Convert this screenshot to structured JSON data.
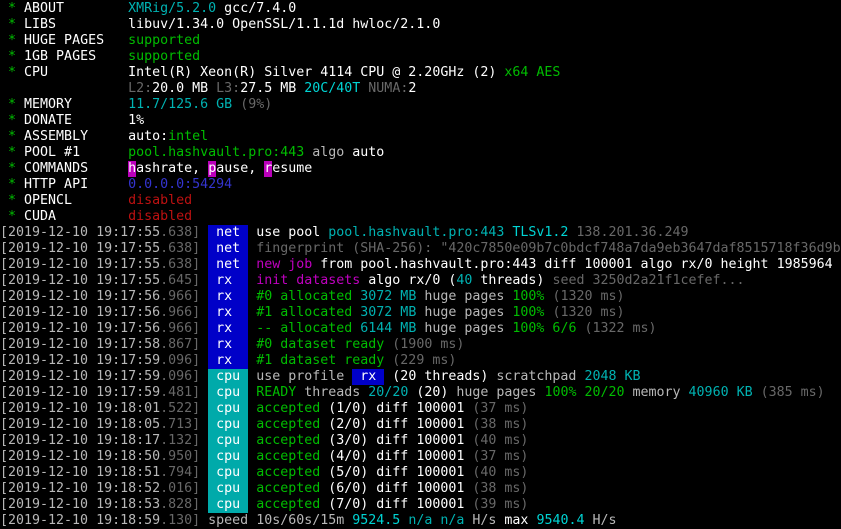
{
  "terminal": {
    "colors": {
      "green": "#00bc00",
      "white": "#b8b8b8",
      "bwhite": "#ffffff",
      "darkgray": "#686868",
      "cyan": "#00b2b2",
      "bcyan": "#00d4d4",
      "magenta": "#c000c0",
      "red": "#bd1111",
      "blue": "#3434d0"
    },
    "bg_colors": {
      "blue": "#0000c8",
      "cyan": "#00aaaa",
      "magenta": "#bb00bb"
    },
    "lines": [
      [
        {
          "t": " * ",
          "c": "green"
        },
        {
          "t": "ABOUT        ",
          "c": "bwhite"
        },
        {
          "t": "XMRig/5.2.0",
          "c": "cyan"
        },
        {
          "t": " gcc/7.4.0",
          "c": "bwhite"
        }
      ],
      [
        {
          "t": " * ",
          "c": "green"
        },
        {
          "t": "LIBS         ",
          "c": "bwhite"
        },
        {
          "t": "libuv/1.34.0 OpenSSL/1.1.1d hwloc/2.1.0",
          "c": "bwhite"
        }
      ],
      [
        {
          "t": " * ",
          "c": "green"
        },
        {
          "t": "HUGE PAGES   ",
          "c": "bwhite"
        },
        {
          "t": "supported",
          "c": "green"
        }
      ],
      [
        {
          "t": " * ",
          "c": "green"
        },
        {
          "t": "1GB PAGES    ",
          "c": "bwhite"
        },
        {
          "t": "supported",
          "c": "green"
        }
      ],
      [
        {
          "t": " * ",
          "c": "green"
        },
        {
          "t": "CPU          ",
          "c": "bwhite"
        },
        {
          "t": "Intel(R) Xeon(R) Silver 4114 CPU @ 2.20GHz (2) ",
          "c": "bwhite"
        },
        {
          "t": "x64 AES",
          "c": "green"
        }
      ],
      [
        {
          "t": "                ",
          "c": "white"
        },
        {
          "t": "L2:",
          "c": "darkgray"
        },
        {
          "t": "20.0 MB ",
          "c": "bwhite"
        },
        {
          "t": "L3:",
          "c": "darkgray"
        },
        {
          "t": "27.5 MB ",
          "c": "bwhite"
        },
        {
          "t": "20C/40T ",
          "c": "bcyan"
        },
        {
          "t": "NUMA:",
          "c": "darkgray"
        },
        {
          "t": "2",
          "c": "bwhite"
        }
      ],
      [
        {
          "t": " * ",
          "c": "green"
        },
        {
          "t": "MEMORY       ",
          "c": "bwhite"
        },
        {
          "t": "11.7/125.6 GB ",
          "c": "cyan"
        },
        {
          "t": "(9%)",
          "c": "darkgray"
        }
      ],
      [
        {
          "t": " * ",
          "c": "green"
        },
        {
          "t": "DONATE       ",
          "c": "bwhite"
        },
        {
          "t": "1%",
          "c": "bwhite"
        }
      ],
      [
        {
          "t": " * ",
          "c": "green"
        },
        {
          "t": "ASSEMBLY     ",
          "c": "bwhite"
        },
        {
          "t": "auto:",
          "c": "bwhite"
        },
        {
          "t": "intel",
          "c": "green"
        }
      ],
      [
        {
          "t": " * ",
          "c": "green"
        },
        {
          "t": "POOL #1      ",
          "c": "bwhite"
        },
        {
          "t": "pool.hashvault.pro:443",
          "c": "green"
        },
        {
          "t": " algo ",
          "c": "white"
        },
        {
          "t": "auto",
          "c": "bwhite"
        }
      ],
      [
        {
          "t": " * ",
          "c": "green"
        },
        {
          "t": "COMMANDS     ",
          "c": "bwhite"
        },
        {
          "t": "h",
          "c": "bwhite",
          "b": "magenta"
        },
        {
          "t": "ashrate, ",
          "c": "bwhite"
        },
        {
          "t": "p",
          "c": "bwhite",
          "b": "magenta"
        },
        {
          "t": "ause, ",
          "c": "bwhite"
        },
        {
          "t": "r",
          "c": "bwhite",
          "b": "magenta"
        },
        {
          "t": "esume",
          "c": "bwhite"
        }
      ],
      [
        {
          "t": " * ",
          "c": "green"
        },
        {
          "t": "HTTP API     ",
          "c": "bwhite"
        },
        {
          "t": "0.0.0.0:54294",
          "c": "blue"
        }
      ],
      [
        {
          "t": " * ",
          "c": "green"
        },
        {
          "t": "OPENCL       ",
          "c": "bwhite"
        },
        {
          "t": "disabled",
          "c": "red"
        }
      ],
      [
        {
          "t": " * ",
          "c": "green"
        },
        {
          "t": "CUDA         ",
          "c": "bwhite"
        },
        {
          "t": "disabled",
          "c": "red"
        }
      ],
      [
        {
          "t": "[2019-12-10 19:17:55",
          "c": "white"
        },
        {
          "t": ".638] ",
          "c": "darkgray"
        },
        {
          "t": " net ",
          "c": "bwhite",
          "b": "blue"
        },
        {
          "t": " use pool ",
          "c": "bwhite"
        },
        {
          "t": "pool.hashvault.pro:443 ",
          "c": "cyan"
        },
        {
          "t": "TLSv1.2 ",
          "c": "bcyan"
        },
        {
          "t": "138.201.36.249",
          "c": "darkgray"
        }
      ],
      [
        {
          "t": "[2019-12-10 19:17:55",
          "c": "white"
        },
        {
          "t": ".638] ",
          "c": "darkgray"
        },
        {
          "t": " net ",
          "c": "bwhite",
          "b": "blue"
        },
        {
          "t": " fingerprint (SHA-256): \"420c7850e09b7c0bdcf748a7da9eb3647daf8515718f36d9b",
          "c": "darkgray"
        }
      ],
      [
        {
          "t": "[2019-12-10 19:17:55",
          "c": "white"
        },
        {
          "t": ".638] ",
          "c": "darkgray"
        },
        {
          "t": " net ",
          "c": "bwhite",
          "b": "blue"
        },
        {
          "t": " ",
          "c": "bwhite"
        },
        {
          "t": "new job",
          "c": "magenta"
        },
        {
          "t": " from pool.hashvault.pro:443 diff 100001 algo rx/0 height 1985964",
          "c": "bwhite"
        }
      ],
      [
        {
          "t": "[2019-12-10 19:17:55",
          "c": "white"
        },
        {
          "t": ".645] ",
          "c": "darkgray"
        },
        {
          "t": " rx  ",
          "c": "bwhite",
          "b": "blue"
        },
        {
          "t": " ",
          "c": "bwhite"
        },
        {
          "t": "init datasets",
          "c": "magenta"
        },
        {
          "t": " algo rx/0 (",
          "c": "bwhite"
        },
        {
          "t": "40",
          "c": "cyan"
        },
        {
          "t": " threads) ",
          "c": "bwhite"
        },
        {
          "t": "seed 3250d2a21f1cefef...",
          "c": "darkgray"
        }
      ],
      [
        {
          "t": "[2019-12-10 19:17:56",
          "c": "white"
        },
        {
          "t": ".966] ",
          "c": "darkgray"
        },
        {
          "t": " rx  ",
          "c": "bwhite",
          "b": "blue"
        },
        {
          "t": " ",
          "c": "white"
        },
        {
          "t": "#0 allocated ",
          "c": "green"
        },
        {
          "t": "3072 MB",
          "c": "cyan"
        },
        {
          "t": " huge pages ",
          "c": "white"
        },
        {
          "t": "100% ",
          "c": "green"
        },
        {
          "t": "(1320 ms)",
          "c": "darkgray"
        }
      ],
      [
        {
          "t": "[2019-12-10 19:17:56",
          "c": "white"
        },
        {
          "t": ".966] ",
          "c": "darkgray"
        },
        {
          "t": " rx  ",
          "c": "bwhite",
          "b": "blue"
        },
        {
          "t": " ",
          "c": "white"
        },
        {
          "t": "#1 allocated ",
          "c": "green"
        },
        {
          "t": "3072 MB",
          "c": "cyan"
        },
        {
          "t": " huge pages ",
          "c": "white"
        },
        {
          "t": "100% ",
          "c": "green"
        },
        {
          "t": "(1320 ms)",
          "c": "darkgray"
        }
      ],
      [
        {
          "t": "[2019-12-10 19:17:56",
          "c": "white"
        },
        {
          "t": ".966] ",
          "c": "darkgray"
        },
        {
          "t": " rx  ",
          "c": "bwhite",
          "b": "blue"
        },
        {
          "t": " ",
          "c": "white"
        },
        {
          "t": "-- allocated ",
          "c": "green"
        },
        {
          "t": "6144 MB",
          "c": "cyan"
        },
        {
          "t": " huge pages ",
          "c": "white"
        },
        {
          "t": "100% 6/6 ",
          "c": "green"
        },
        {
          "t": "(1322 ms)",
          "c": "darkgray"
        }
      ],
      [
        {
          "t": "[2019-12-10 19:17:58",
          "c": "white"
        },
        {
          "t": ".867] ",
          "c": "darkgray"
        },
        {
          "t": " rx  ",
          "c": "bwhite",
          "b": "blue"
        },
        {
          "t": " ",
          "c": "white"
        },
        {
          "t": "#0 dataset ready ",
          "c": "green"
        },
        {
          "t": "(1900 ms)",
          "c": "darkgray"
        }
      ],
      [
        {
          "t": "[2019-12-10 19:17:59",
          "c": "white"
        },
        {
          "t": ".096] ",
          "c": "darkgray"
        },
        {
          "t": " rx  ",
          "c": "bwhite",
          "b": "blue"
        },
        {
          "t": " ",
          "c": "white"
        },
        {
          "t": "#1 dataset ready ",
          "c": "green"
        },
        {
          "t": "(229 ms)",
          "c": "darkgray"
        }
      ],
      [
        {
          "t": "[2019-12-10 19:17:59",
          "c": "white"
        },
        {
          "t": ".096] ",
          "c": "darkgray"
        },
        {
          "t": " cpu ",
          "c": "bwhite",
          "b": "cyan"
        },
        {
          "t": " use profile ",
          "c": "white"
        },
        {
          "t": " rx ",
          "c": "bwhite",
          "b": "blue"
        },
        {
          "t": " (20 threads)",
          "c": "bwhite"
        },
        {
          "t": " scratchpad ",
          "c": "white"
        },
        {
          "t": "2048 KB",
          "c": "cyan"
        }
      ],
      [
        {
          "t": "[2019-12-10 19:17:59",
          "c": "white"
        },
        {
          "t": ".481] ",
          "c": "darkgray"
        },
        {
          "t": " cpu ",
          "c": "bwhite",
          "b": "cyan"
        },
        {
          "t": " ",
          "c": "white"
        },
        {
          "t": "READY",
          "c": "green"
        },
        {
          "t": " threads ",
          "c": "white"
        },
        {
          "t": "20/20",
          "c": "cyan"
        },
        {
          "t": " (20) ",
          "c": "bwhite"
        },
        {
          "t": "huge pages ",
          "c": "white"
        },
        {
          "t": "100% 20/20",
          "c": "green"
        },
        {
          "t": " memory ",
          "c": "white"
        },
        {
          "t": "40960 KB",
          "c": "cyan"
        },
        {
          "t": " (385 ms)",
          "c": "darkgray"
        }
      ],
      [
        {
          "t": "[2019-12-10 19:18:01",
          "c": "white"
        },
        {
          "t": ".522] ",
          "c": "darkgray"
        },
        {
          "t": " cpu ",
          "c": "bwhite",
          "b": "cyan"
        },
        {
          "t": " ",
          "c": "white"
        },
        {
          "t": "accepted",
          "c": "green"
        },
        {
          "t": " (1/0) diff 100001 ",
          "c": "bwhite"
        },
        {
          "t": "(37 ms)",
          "c": "darkgray"
        }
      ],
      [
        {
          "t": "[2019-12-10 19:18:05",
          "c": "white"
        },
        {
          "t": ".713] ",
          "c": "darkgray"
        },
        {
          "t": " cpu ",
          "c": "bwhite",
          "b": "cyan"
        },
        {
          "t": " ",
          "c": "white"
        },
        {
          "t": "accepted",
          "c": "green"
        },
        {
          "t": " (2/0) diff 100001 ",
          "c": "bwhite"
        },
        {
          "t": "(38 ms)",
          "c": "darkgray"
        }
      ],
      [
        {
          "t": "[2019-12-10 19:18:17",
          "c": "white"
        },
        {
          "t": ".132] ",
          "c": "darkgray"
        },
        {
          "t": " cpu ",
          "c": "bwhite",
          "b": "cyan"
        },
        {
          "t": " ",
          "c": "white"
        },
        {
          "t": "accepted",
          "c": "green"
        },
        {
          "t": " (3/0) diff 100001 ",
          "c": "bwhite"
        },
        {
          "t": "(40 ms)",
          "c": "darkgray"
        }
      ],
      [
        {
          "t": "[2019-12-10 19:18:50",
          "c": "white"
        },
        {
          "t": ".950] ",
          "c": "darkgray"
        },
        {
          "t": " cpu ",
          "c": "bwhite",
          "b": "cyan"
        },
        {
          "t": " ",
          "c": "white"
        },
        {
          "t": "accepted",
          "c": "green"
        },
        {
          "t": " (4/0) diff 100001 ",
          "c": "bwhite"
        },
        {
          "t": "(37 ms)",
          "c": "darkgray"
        }
      ],
      [
        {
          "t": "[2019-12-10 19:18:51",
          "c": "white"
        },
        {
          "t": ".794] ",
          "c": "darkgray"
        },
        {
          "t": " cpu ",
          "c": "bwhite",
          "b": "cyan"
        },
        {
          "t": " ",
          "c": "white"
        },
        {
          "t": "accepted",
          "c": "green"
        },
        {
          "t": " (5/0) diff 100001 ",
          "c": "bwhite"
        },
        {
          "t": "(40 ms)",
          "c": "darkgray"
        }
      ],
      [
        {
          "t": "[2019-12-10 19:18:52",
          "c": "white"
        },
        {
          "t": ".016] ",
          "c": "darkgray"
        },
        {
          "t": " cpu ",
          "c": "bwhite",
          "b": "cyan"
        },
        {
          "t": " ",
          "c": "white"
        },
        {
          "t": "accepted",
          "c": "green"
        },
        {
          "t": " (6/0) diff 100001 ",
          "c": "bwhite"
        },
        {
          "t": "(38 ms)",
          "c": "darkgray"
        }
      ],
      [
        {
          "t": "[2019-12-10 19:18:53",
          "c": "white"
        },
        {
          "t": ".828] ",
          "c": "darkgray"
        },
        {
          "t": " cpu ",
          "c": "bwhite",
          "b": "cyan"
        },
        {
          "t": " ",
          "c": "white"
        },
        {
          "t": "accepted",
          "c": "green"
        },
        {
          "t": " (7/0) diff 100001 ",
          "c": "bwhite"
        },
        {
          "t": "(39 ms)",
          "c": "darkgray"
        }
      ],
      [
        {
          "t": "[2019-12-10 19:18:59",
          "c": "white"
        },
        {
          "t": ".130] ",
          "c": "darkgray"
        },
        {
          "t": "speed ",
          "c": "white"
        },
        {
          "t": "10s/60s/15m ",
          "c": "white"
        },
        {
          "t": "9524.5 ",
          "c": "bcyan"
        },
        {
          "t": "n/a n/a ",
          "c": "cyan"
        },
        {
          "t": "H/s",
          "c": "white"
        },
        {
          "t": " max ",
          "c": "bwhite"
        },
        {
          "t": "9540.4 ",
          "c": "bcyan"
        },
        {
          "t": "H/s",
          "c": "white"
        }
      ]
    ]
  }
}
